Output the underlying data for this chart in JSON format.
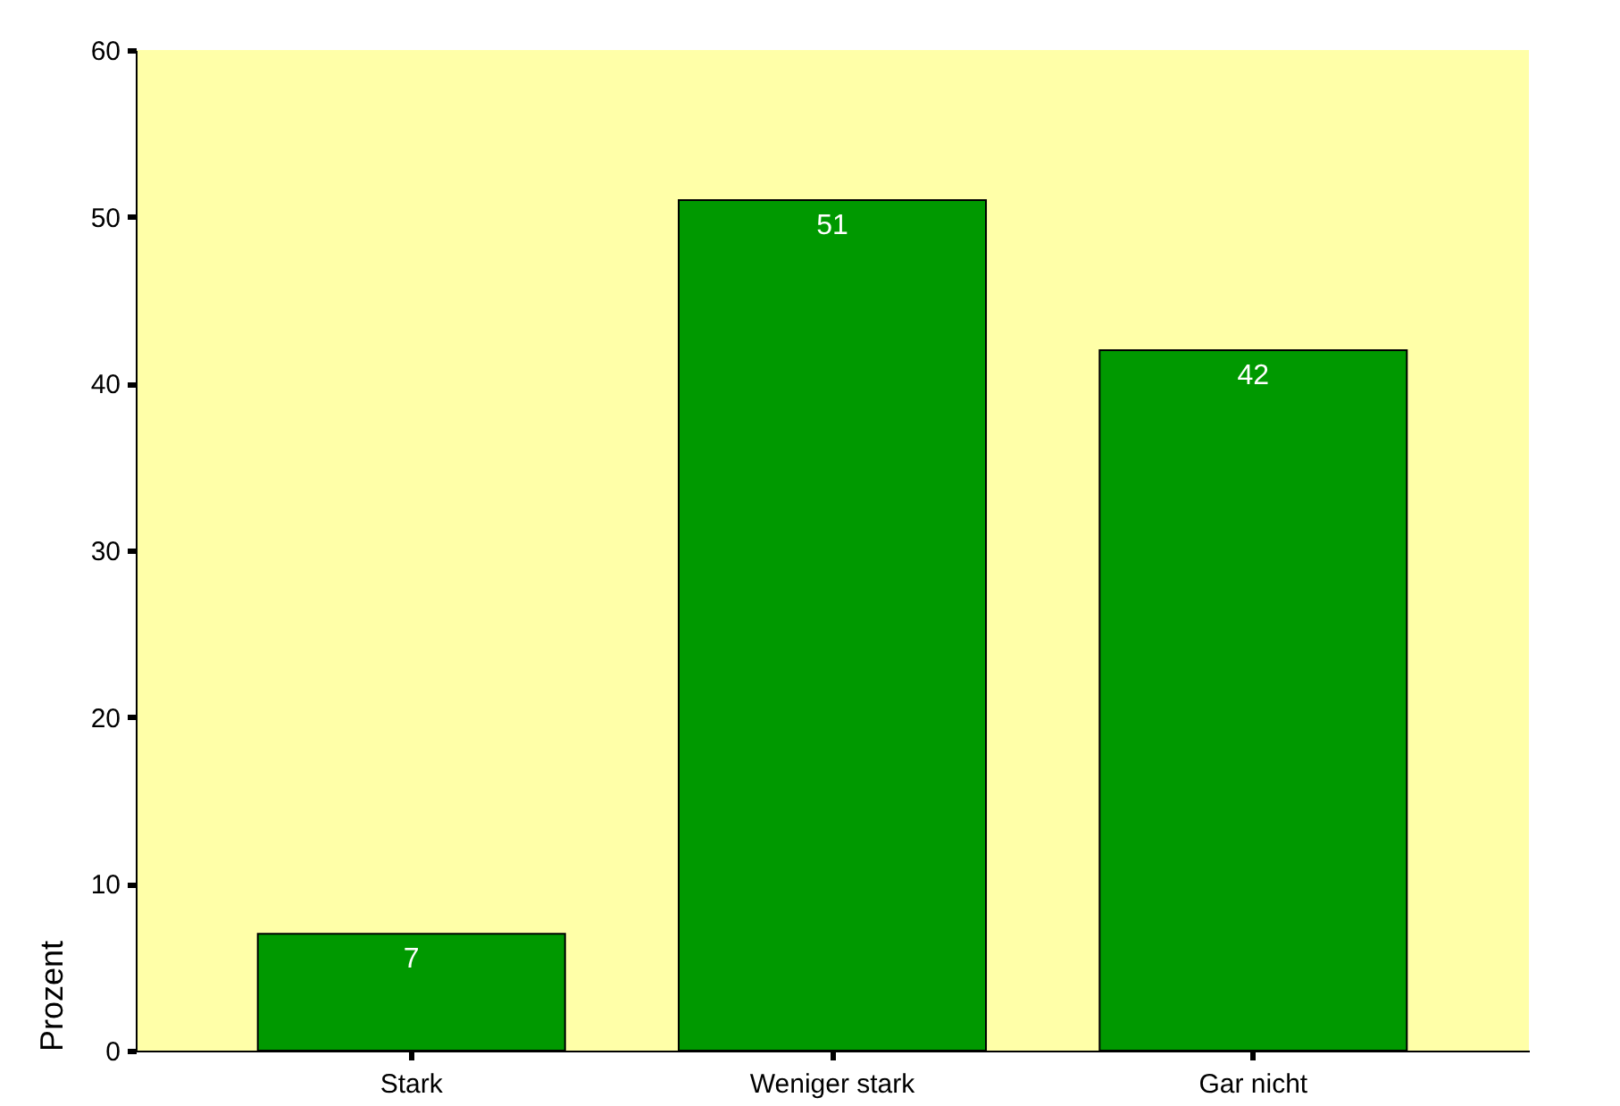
{
  "chart_data": {
    "type": "bar",
    "ylabel": "Prozent",
    "categories": [
      "Stark",
      "Weniger stark",
      "Gar nicht"
    ],
    "values": [
      7,
      51,
      42
    ],
    "color": "#009900",
    "ylim": [
      0,
      60
    ],
    "yticks": [
      0,
      10,
      20,
      30,
      40,
      50,
      60
    ],
    "grid": false,
    "data_labels": true
  }
}
